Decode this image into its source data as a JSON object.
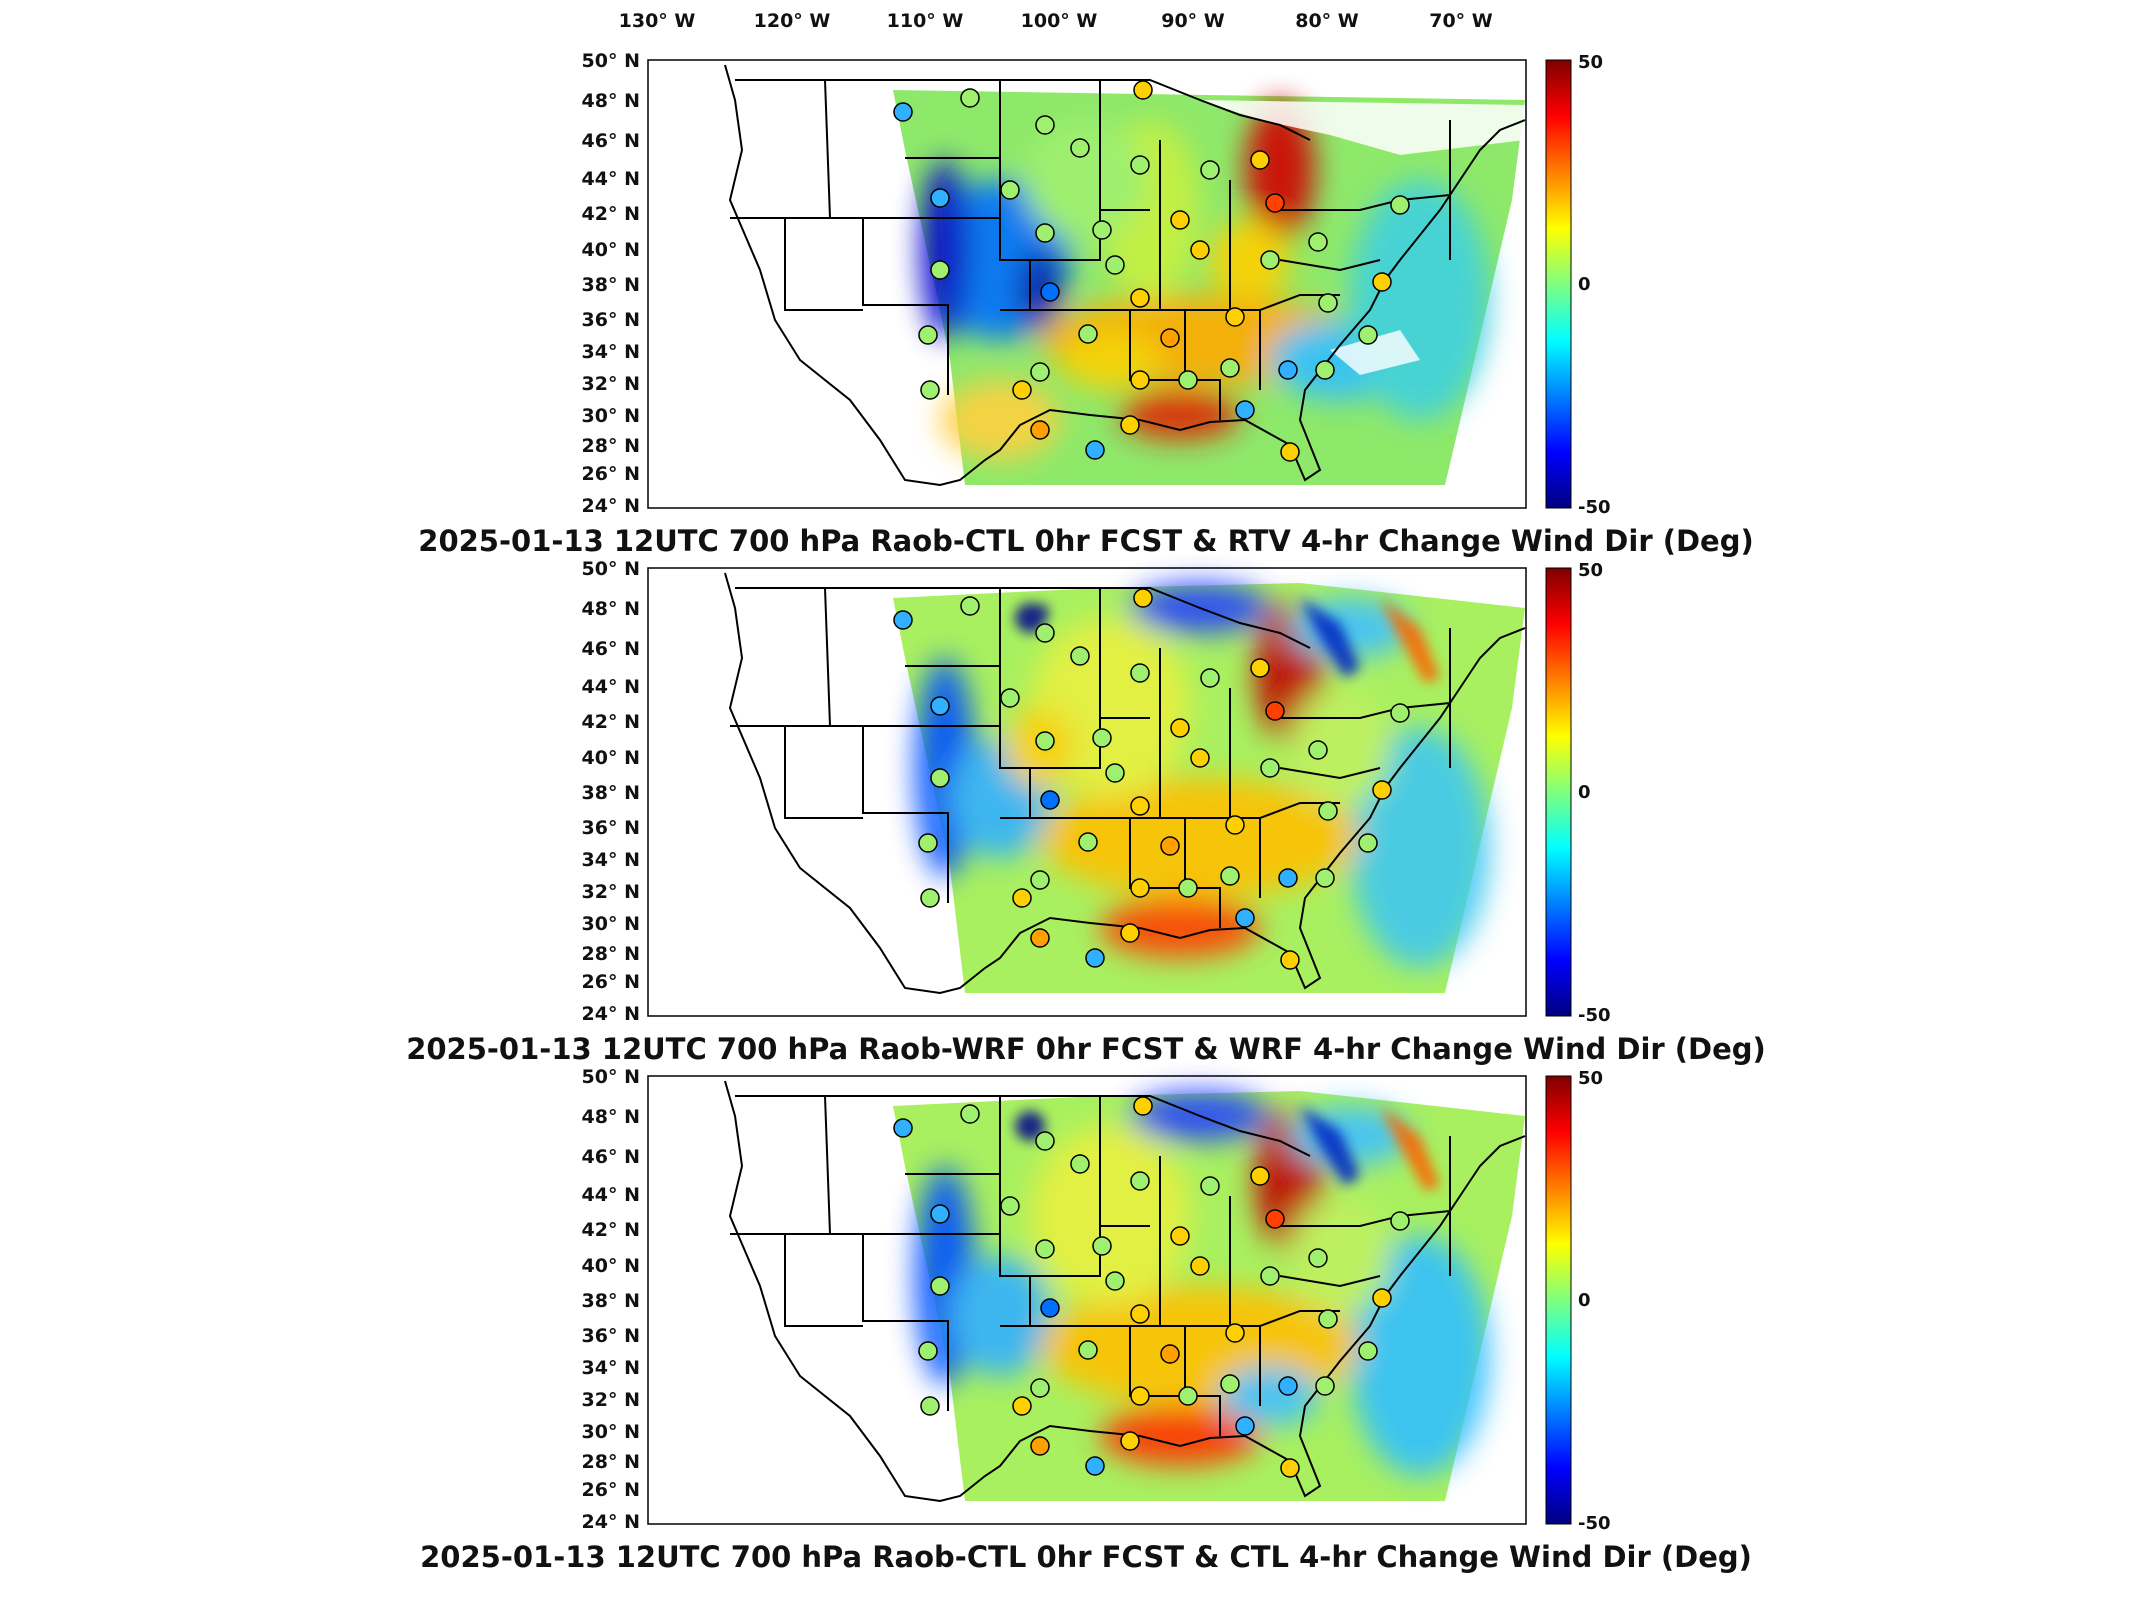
{
  "longitude_labels": [
    "130° W",
    "120° W",
    "110° W",
    "100° W",
    "90° W",
    "80° W",
    "70° W"
  ],
  "latitude_labels": [
    "50° N",
    "48° N",
    "46° N",
    "44° N",
    "42° N",
    "40° N",
    "38° N",
    "36° N",
    "34° N",
    "32° N",
    "30° N",
    "28° N",
    "26° N",
    "24° N"
  ],
  "colorbar": {
    "min_label": "-50",
    "mid_label": "0",
    "max_label": "50",
    "colors": [
      "#00007f",
      "#0000ff",
      "#007fff",
      "#00ffff",
      "#7fff7f",
      "#ffff00",
      "#ff7f00",
      "#ff0000",
      "#7f0000"
    ]
  },
  "panels": [
    {
      "title": "2025-01-13 12UTC 700 hPa Raob-CTL 0hr FCST & RTV 4-hr Change Wind Dir (Deg)"
    },
    {
      "title": "2025-01-13 12UTC 700 hPa Raob-WRF 0hr FCST & WRF 4-hr Change Wind Dir (Deg)"
    },
    {
      "title": "2025-01-13 12UTC 700 hPa Raob-CTL 0hr FCST & CTL 4-hr Change Wind Dir (Deg)"
    }
  ]
}
